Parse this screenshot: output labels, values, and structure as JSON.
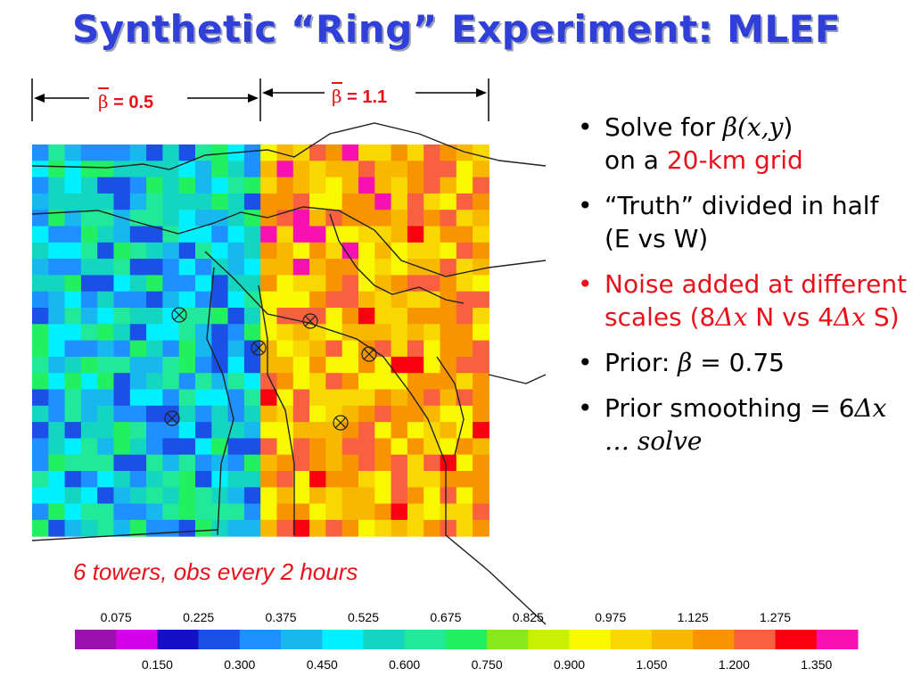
{
  "title": "Synthetic “Ring” Experiment: MLEF",
  "beta_labels": [
    {
      "symbol": "β",
      "text": " = 0.5"
    },
    {
      "symbol": "β",
      "text": " = 1.1"
    }
  ],
  "caption": "6 towers, obs every 2 hours",
  "bullets": [
    {
      "parts": [
        {
          "t": "Solve  for "
        },
        {
          "t": "β(",
          "serif": true
        },
        {
          "t": "x,y",
          "serif": true
        },
        {
          "t": ")"
        },
        {
          "br": true
        },
        {
          "t": "on a "
        },
        {
          "t": "20-km grid",
          "red": true
        }
      ]
    },
    {
      "parts": [
        {
          "t": "“Truth” divided in half (E vs W)"
        }
      ]
    },
    {
      "red": true,
      "parts": [
        {
          "t": "Noise added at different scales (8"
        },
        {
          "t": "Δx",
          "serif": true
        },
        {
          "t": " N vs 4"
        },
        {
          "t": "Δx",
          "serif": true
        },
        {
          "t": " S)"
        }
      ]
    },
    {
      "parts": [
        {
          "t": "Prior: "
        },
        {
          "t": "β",
          "serif": true
        },
        {
          "t": " = 0.75"
        }
      ]
    },
    {
      "parts": [
        {
          "t": "Prior smoothing = 6"
        },
        {
          "t": "Δx",
          "serif": true
        },
        {
          "t": " … solve",
          "serif": true
        }
      ]
    }
  ],
  "colorbar": {
    "top_ticks": [
      "0.075",
      "0.225",
      "0.375",
      "0.525",
      "0.675",
      "0.825",
      "0.975",
      "1.125",
      "1.275"
    ],
    "bottom_ticks": [
      "0.150",
      "0.300",
      "0.450",
      "0.600",
      "0.750",
      "0.900",
      "1.050",
      "1.200",
      "1.350"
    ],
    "colors": [
      "#9c10b0",
      "#d400e8",
      "#1510c8",
      "#1a4fe8",
      "#1e90ff",
      "#17b8f0",
      "#00f0ff",
      "#14d6c0",
      "#22e89a",
      "#22f060",
      "#88e81c",
      "#c8f000",
      "#f8f800",
      "#f8d800",
      "#f8b800",
      "#f89400",
      "#f86040",
      "#f80010",
      "#f810b0"
    ]
  },
  "towers": 6
}
